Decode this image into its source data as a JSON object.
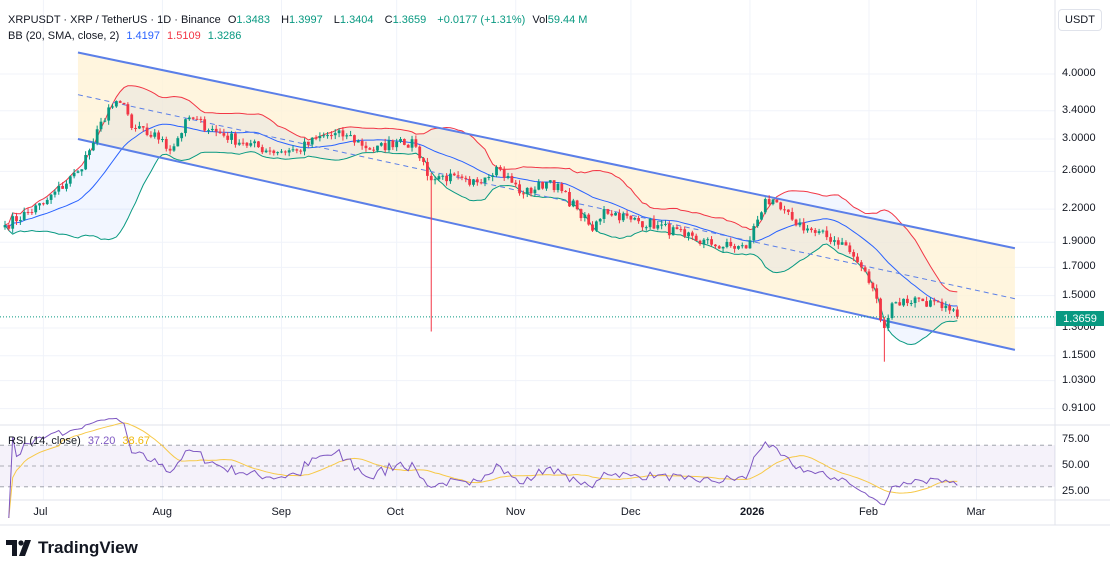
{
  "header": {
    "symbol": "XRPUSDT · XRP / TetherUS · 1D · Binance",
    "o_label": "O",
    "o": "1.3483",
    "h_label": "H",
    "h": "1.3997",
    "l_label": "L",
    "l": "1.3404",
    "c_label": "C",
    "c": "1.3659",
    "change": "+0.0177 (+1.31%)",
    "vol_label": "Vol",
    "vol": "59.44 M"
  },
  "bb": {
    "label": "BB (20, SMA, close, 2)",
    "basis": "1.4197",
    "upper": "1.5109",
    "lower": "1.3286"
  },
  "rsi": {
    "label": "RSI (14, close)",
    "value": "37.20",
    "ma": "38.67"
  },
  "currency": "USDT",
  "last_price": "1.3659",
  "brand": "TradingView",
  "colors": {
    "up": "#089981",
    "down": "#f23645",
    "basis": "#2962ff",
    "upper": "#f23645",
    "lower": "#089981",
    "rsi": "#7e57c2",
    "rsi_ma": "#f7c948",
    "channel": "#5b7fe8"
  },
  "chart_data": {
    "type": "candlestick",
    "price_scale": "log",
    "ylim": [
      0.86,
      4.5
    ],
    "price_ticks": [
      "4.0000",
      "3.4000",
      "3.0000",
      "2.6000",
      "2.2000",
      "1.9000",
      "1.7000",
      "1.5000",
      "1.3000",
      "1.1500",
      "1.0300",
      "0.9100"
    ],
    "rsi_ticks": [
      "75.00",
      "50.00",
      "25.00"
    ],
    "time_ticks": [
      {
        "label": "Jul",
        "date": "2025-07-01"
      },
      {
        "label": "Aug",
        "date": "2025-08-01"
      },
      {
        "label": "Sep",
        "date": "2025-09-01"
      },
      {
        "label": "Oct",
        "date": "2025-10-01"
      },
      {
        "label": "Nov",
        "date": "2025-11-01"
      },
      {
        "label": "Dec",
        "date": "2025-12-01"
      },
      {
        "label": "2026",
        "date": "2026-01-01",
        "bold": true
      },
      {
        "label": "Feb",
        "date": "2026-02-01"
      },
      {
        "label": "Mar",
        "date": "2026-03-01"
      }
    ],
    "start_date": "2025-06-21",
    "close_path": [
      [
        "2025-06-21",
        2.05
      ],
      [
        "2025-07-01",
        2.25
      ],
      [
        "2025-07-10",
        2.6
      ],
      [
        "2025-07-14",
        2.95
      ],
      [
        "2025-07-18",
        3.45
      ],
      [
        "2025-07-22",
        3.5
      ],
      [
        "2025-07-24",
        3.15
      ],
      [
        "2025-08-01",
        3.0
      ],
      [
        "2025-08-03",
        2.85
      ],
      [
        "2025-08-08",
        3.3
      ],
      [
        "2025-08-15",
        3.1
      ],
      [
        "2025-08-22",
        2.95
      ],
      [
        "2025-08-29",
        2.85
      ],
      [
        "2025-09-05",
        2.85
      ],
      [
        "2025-09-12",
        3.05
      ],
      [
        "2025-09-18",
        3.05
      ],
      [
        "2025-09-25",
        2.85
      ],
      [
        "2025-10-02",
        3.0
      ],
      [
        "2025-10-06",
        2.9
      ],
      [
        "2025-10-10",
        2.5
      ],
      [
        "2025-10-13",
        2.55
      ],
      [
        "2025-10-20",
        2.45
      ],
      [
        "2025-10-27",
        2.65
      ],
      [
        "2025-11-03",
        2.35
      ],
      [
        "2025-11-10",
        2.5
      ],
      [
        "2025-11-17",
        2.2
      ],
      [
        "2025-11-21",
        2.0
      ],
      [
        "2025-11-24",
        2.2
      ],
      [
        "2025-12-01",
        2.1
      ],
      [
        "2025-12-08",
        2.05
      ],
      [
        "2025-12-15",
        1.95
      ],
      [
        "2025-12-22",
        1.88
      ],
      [
        "2025-12-31",
        1.85
      ],
      [
        "2026-01-05",
        2.3
      ],
      [
        "2026-01-12",
        2.1
      ],
      [
        "2026-01-18",
        1.98
      ],
      [
        "2026-01-25",
        1.9
      ],
      [
        "2026-01-30",
        1.7
      ],
      [
        "2026-02-02",
        1.55
      ],
      [
        "2026-02-05",
        1.3
      ],
      [
        "2026-02-07",
        1.45
      ],
      [
        "2026-02-14",
        1.48
      ],
      [
        "2026-02-20",
        1.42
      ],
      [
        "2026-02-24",
        1.3659
      ]
    ],
    "extreme_wicks": [
      [
        "2025-10-10",
        1.28
      ],
      [
        "2026-02-05",
        1.12
      ]
    ],
    "channel": {
      "upper": [
        [
          "2025-07-10",
          4.4
        ],
        [
          "2026-03-11",
          1.85
        ]
      ],
      "lower": [
        [
          "2025-07-10",
          3.0
        ],
        [
          "2026-03-11",
          1.18
        ]
      ],
      "mid": [
        [
          "2025-07-10",
          3.65
        ],
        [
          "2026-03-11",
          1.48
        ]
      ]
    }
  }
}
